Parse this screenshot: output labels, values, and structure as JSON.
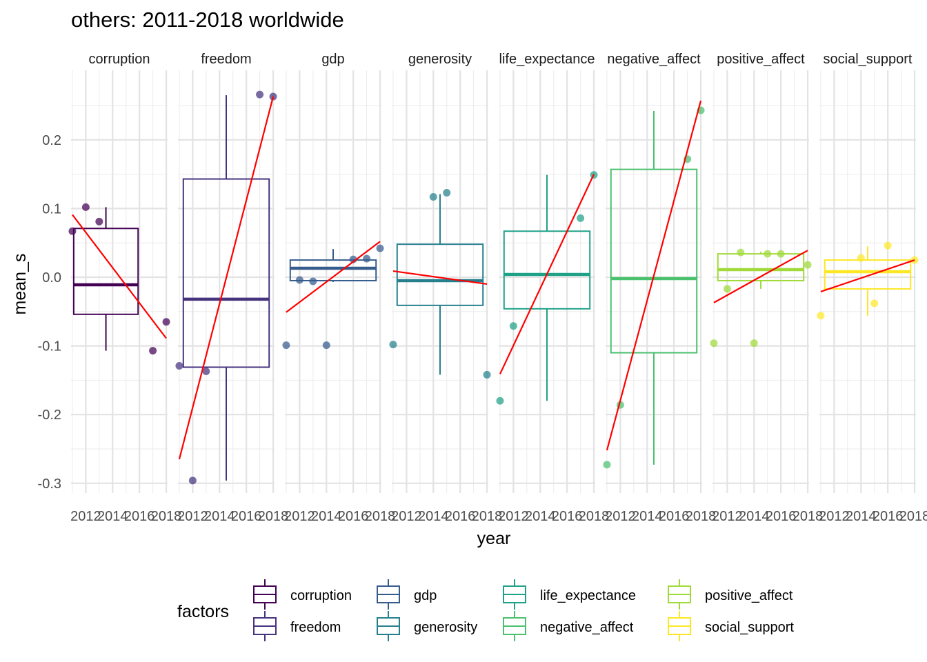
{
  "chart_data": {
    "type": "box",
    "title": "others: 2011-2018 worldwide",
    "xlabel": "year",
    "ylabel": "mean_s",
    "ylim": [
      -0.31,
      0.29
    ],
    "y_ticks": [
      0.2,
      0.1,
      0.0,
      -0.1,
      -0.2,
      -0.3
    ],
    "y_tick_labels": [
      "0.2",
      "0.1",
      "0.0",
      "-0.1",
      "-0.2",
      "-0.3"
    ],
    "xlim": [
      2010.9,
      2018.1
    ],
    "x_ticks": [
      2012,
      2014,
      2016,
      2018
    ],
    "x_tick_labels": [
      "2012",
      "2014",
      "2016",
      "2018"
    ],
    "grid": true,
    "legend_title": "factors",
    "legend_position": "bottom",
    "trend_color": "#ff0000",
    "panels": [
      {
        "name": "corruption",
        "strip_label": "corruption",
        "color": "#440154",
        "box": {
          "x_low": 2011.1,
          "x_high": 2015.9,
          "q1": -0.054,
          "median": -0.011,
          "q3": 0.071,
          "whisker_low": -0.107,
          "whisker_high": 0.102
        },
        "points": [
          {
            "x": 2011.0,
            "y": 0.067
          },
          {
            "x": 2012.0,
            "y": 0.102
          },
          {
            "x": 2013.0,
            "y": 0.081
          },
          {
            "x": 2017.0,
            "y": -0.107
          },
          {
            "x": 2018.0,
            "y": -0.065
          }
        ],
        "trend": {
          "x1": 2011.0,
          "y1": 0.091,
          "x2": 2018.0,
          "y2": -0.089
        }
      },
      {
        "name": "freedom",
        "strip_label": "freedom",
        "color": "#46337e",
        "box": {
          "x_low": 2011.3,
          "x_high": 2017.7,
          "q1": -0.131,
          "median": -0.032,
          "q3": 0.143,
          "whisker_low": -0.296,
          "whisker_high": 0.265
        },
        "points": [
          {
            "x": 2011.0,
            "y": -0.129
          },
          {
            "x": 2012.0,
            "y": -0.296
          },
          {
            "x": 2013.0,
            "y": -0.137
          },
          {
            "x": 2017.0,
            "y": 0.266
          },
          {
            "x": 2018.0,
            "y": 0.263
          }
        ],
        "trend": {
          "x1": 2011.0,
          "y1": -0.265,
          "x2": 2018.0,
          "y2": 0.263
        }
      },
      {
        "name": "gdp",
        "strip_label": "gdp",
        "color": "#365c8d",
        "box": {
          "x_low": 2011.3,
          "x_high": 2017.7,
          "q1": -0.005,
          "median": 0.013,
          "q3": 0.025,
          "whisker_low": -0.007,
          "whisker_high": 0.041
        },
        "points": [
          {
            "x": 2011.0,
            "y": -0.099
          },
          {
            "x": 2012.0,
            "y": -0.004
          },
          {
            "x": 2013.0,
            "y": -0.006
          },
          {
            "x": 2014.0,
            "y": -0.099
          },
          {
            "x": 2016.0,
            "y": 0.026
          },
          {
            "x": 2017.0,
            "y": 0.027
          },
          {
            "x": 2018.0,
            "y": 0.042
          }
        ],
        "trend": {
          "x1": 2011.0,
          "y1": -0.051,
          "x2": 2018.0,
          "y2": 0.052
        }
      },
      {
        "name": "generosity",
        "strip_label": "generosity",
        "color": "#277f8e",
        "box": {
          "x_low": 2011.3,
          "x_high": 2017.7,
          "q1": -0.041,
          "median": -0.005,
          "q3": 0.048,
          "whisker_low": -0.142,
          "whisker_high": 0.121
        },
        "points": [
          {
            "x": 2011.0,
            "y": -0.098
          },
          {
            "x": 2014.0,
            "y": 0.117
          },
          {
            "x": 2015.0,
            "y": 0.123
          },
          {
            "x": 2018.0,
            "y": -0.142
          }
        ],
        "trend": {
          "x1": 2011.0,
          "y1": 0.009,
          "x2": 2018.0,
          "y2": -0.01
        }
      },
      {
        "name": "life_expectance",
        "strip_label": "life_expectance",
        "color": "#1fa187",
        "box": {
          "x_low": 2011.3,
          "x_high": 2017.7,
          "q1": -0.046,
          "median": 0.004,
          "q3": 0.067,
          "whisker_low": -0.18,
          "whisker_high": 0.149
        },
        "points": [
          {
            "x": 2011.0,
            "y": -0.18
          },
          {
            "x": 2012.0,
            "y": -0.071
          },
          {
            "x": 2017.0,
            "y": 0.086
          },
          {
            "x": 2018.0,
            "y": 0.149
          }
        ],
        "trend": {
          "x1": 2011.0,
          "y1": -0.141,
          "x2": 2018.0,
          "y2": 0.15
        }
      },
      {
        "name": "negative_affect",
        "strip_label": "negative_affect",
        "color": "#4ac16d",
        "box": {
          "x_low": 2011.3,
          "x_high": 2017.7,
          "q1": -0.11,
          "median": -0.002,
          "q3": 0.157,
          "whisker_low": -0.273,
          "whisker_high": 0.242
        },
        "points": [
          {
            "x": 2011.0,
            "y": -0.273
          },
          {
            "x": 2012.0,
            "y": -0.186
          },
          {
            "x": 2017.0,
            "y": 0.172
          },
          {
            "x": 2018.0,
            "y": 0.243
          }
        ],
        "trend": {
          "x1": 2011.0,
          "y1": -0.252,
          "x2": 2018.0,
          "y2": 0.257
        }
      },
      {
        "name": "positive_affect",
        "strip_label": "positive_affect",
        "color": "#a0da39",
        "box": {
          "x_low": 2011.3,
          "x_high": 2017.7,
          "q1": -0.005,
          "median": 0.011,
          "q3": 0.034,
          "whisker_low": -0.017,
          "whisker_high": 0.037
        },
        "points": [
          {
            "x": 2011.0,
            "y": -0.096
          },
          {
            "x": 2012.0,
            "y": -0.017
          },
          {
            "x": 2013.0,
            "y": 0.036
          },
          {
            "x": 2014.0,
            "y": -0.096
          },
          {
            "x": 2015.0,
            "y": 0.034
          },
          {
            "x": 2016.0,
            "y": 0.034
          },
          {
            "x": 2018.0,
            "y": 0.018
          }
        ],
        "trend": {
          "x1": 2011.0,
          "y1": -0.037,
          "x2": 2018.0,
          "y2": 0.039
        }
      },
      {
        "name": "social_support",
        "strip_label": "social_support",
        "color": "#fde725",
        "box": {
          "x_low": 2011.3,
          "x_high": 2017.7,
          "q1": -0.017,
          "median": 0.008,
          "q3": 0.025,
          "whisker_low": -0.056,
          "whisker_high": 0.045
        },
        "points": [
          {
            "x": 2011.0,
            "y": -0.056
          },
          {
            "x": 2014.0,
            "y": 0.028
          },
          {
            "x": 2015.0,
            "y": -0.038
          },
          {
            "x": 2016.0,
            "y": 0.046
          },
          {
            "x": 2018.0,
            "y": 0.025
          }
        ],
        "trend": {
          "x1": 2011.0,
          "y1": -0.021,
          "x2": 2018.0,
          "y2": 0.025
        }
      }
    ],
    "legend": [
      {
        "label": "corruption",
        "color": "#440154"
      },
      {
        "label": "freedom",
        "color": "#46337e"
      },
      {
        "label": "gdp",
        "color": "#365c8d"
      },
      {
        "label": "generosity",
        "color": "#277f8e"
      },
      {
        "label": "life_expectance",
        "color": "#1fa187"
      },
      {
        "label": "negative_affect",
        "color": "#4ac16d"
      },
      {
        "label": "positive_affect",
        "color": "#a0da39"
      },
      {
        "label": "social_support",
        "color": "#fde725"
      }
    ]
  }
}
